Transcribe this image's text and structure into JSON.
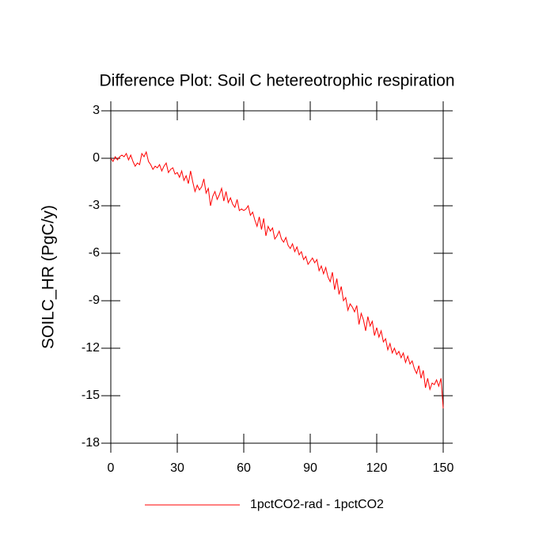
{
  "chart_data": {
    "type": "line",
    "title": "Difference Plot: Soil C hetereotrophic respiration",
    "y_label": "SOILC_HR  (PgC/y)",
    "xlim": [
      0,
      150
    ],
    "xticks": [
      0,
      30,
      60,
      90,
      120,
      150
    ],
    "ylim": [
      -18,
      3
    ],
    "yticks": [
      3,
      0,
      -3,
      -6,
      -9,
      -12,
      -15,
      -18
    ],
    "x": [
      0,
      1,
      2,
      3,
      4,
      5,
      6,
      7,
      8,
      9,
      10,
      11,
      12,
      13,
      14,
      15,
      16,
      17,
      18,
      19,
      20,
      21,
      22,
      23,
      24,
      25,
      26,
      27,
      28,
      29,
      30,
      31,
      32,
      33,
      34,
      35,
      36,
      37,
      38,
      39,
      40,
      41,
      42,
      43,
      44,
      45,
      46,
      47,
      48,
      49,
      50,
      51,
      52,
      53,
      54,
      55,
      56,
      57,
      58,
      59,
      60,
      61,
      62,
      63,
      64,
      65,
      66,
      67,
      68,
      69,
      70,
      71,
      72,
      73,
      74,
      75,
      76,
      77,
      78,
      79,
      80,
      81,
      82,
      83,
      84,
      85,
      86,
      87,
      88,
      89,
      90,
      91,
      92,
      93,
      94,
      95,
      96,
      97,
      98,
      99,
      100,
      101,
      102,
      103,
      104,
      105,
      106,
      107,
      108,
      109,
      110,
      111,
      112,
      113,
      114,
      115,
      116,
      117,
      118,
      119,
      120,
      121,
      122,
      123,
      124,
      125,
      126,
      127,
      128,
      129,
      130,
      131,
      132,
      133,
      134,
      135,
      136,
      137,
      138,
      139,
      140,
      141,
      142,
      143,
      144,
      145,
      146,
      147,
      148,
      149,
      150
    ],
    "series": [
      {
        "name": "1pctCO2-rad - 1pctCO2",
        "color": "#ff0000",
        "values": [
          0,
          -0.2,
          0.1,
          -0.1,
          0.1,
          0.2,
          0.1,
          0.3,
          -0.1,
          0.2,
          -0.2,
          -0.5,
          -0.3,
          -0.4,
          0.3,
          0.1,
          0.4,
          -0.2,
          -0.4,
          -0.7,
          -0.5,
          -0.6,
          -0.4,
          -0.8,
          -0.5,
          -0.3,
          -0.9,
          -0.7,
          -0.6,
          -1.0,
          -0.9,
          -1.2,
          -0.8,
          -1.4,
          -1.1,
          -1.6,
          -0.8,
          -1.5,
          -2.1,
          -1.7,
          -2.0,
          -1.8,
          -1.3,
          -2.2,
          -1.9,
          -3.0,
          -2.4,
          -2.1,
          -2.6,
          -2.3,
          -1.9,
          -2.7,
          -2.1,
          -2.8,
          -2.5,
          -2.9,
          -3.1,
          -2.6,
          -3.3,
          -3.2,
          -3.3,
          -3.2,
          -3.0,
          -3.6,
          -3.4,
          -3.9,
          -4.3,
          -3.7,
          -4.5,
          -3.8,
          -4.9,
          -4.3,
          -4.6,
          -4.4,
          -5.1,
          -4.9,
          -4.6,
          -5.1,
          -5.3,
          -5.0,
          -5.5,
          -5.7,
          -5.4,
          -5.9,
          -5.6,
          -6.1,
          -5.9,
          -6.4,
          -6.2,
          -6.7,
          -6.5,
          -6.3,
          -6.6,
          -6.4,
          -7.1,
          -6.8,
          -7.3,
          -6.9,
          -7.5,
          -7.8,
          -7.2,
          -8.3,
          -7.6,
          -8.6,
          -8.1,
          -9.0,
          -8.8,
          -9.6,
          -9.2,
          -9.4,
          -9.7,
          -9.3,
          -10.5,
          -9.8,
          -10.2,
          -10.9,
          -10.0,
          -10.6,
          -10.3,
          -11.2,
          -10.7,
          -11.3,
          -10.9,
          -11.6,
          -11.4,
          -12.1,
          -11.7,
          -12.3,
          -12.0,
          -12.4,
          -12.2,
          -12.6,
          -12.3,
          -12.9,
          -12.5,
          -13.0,
          -12.8,
          -13.3,
          -13.6,
          -13.1,
          -13.9,
          -13.4,
          -14.5,
          -13.9,
          -14.6,
          -14.2,
          -14.3,
          -14.0,
          -14.4,
          -13.9,
          -15.8
        ]
      }
    ],
    "legend": "bottom"
  }
}
